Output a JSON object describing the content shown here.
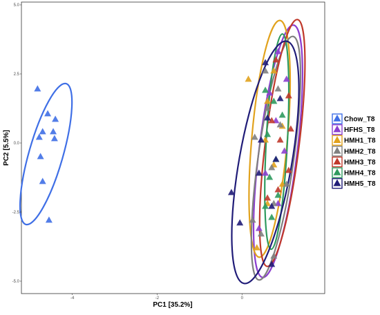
{
  "chart_data": {
    "type": "scatter",
    "xlabel": "PC1  [35.2%]",
    "ylabel": "PC2  [5.5%]",
    "xlim": [
      -5.2,
      1.95
    ],
    "ylim": [
      -5.45,
      5.1
    ],
    "x_ticks": [
      -4,
      -2,
      0
    ],
    "y_ticks": [
      -5.0,
      -2.5,
      0.0,
      2.5,
      5.0
    ],
    "y_tick_labels": [
      "-5.0",
      "-2.5",
      "0.0",
      "2.5",
      "5.0"
    ],
    "x_tick_labels": [
      "-4",
      "-2",
      "0"
    ],
    "grid": false,
    "marker": "triangle",
    "legend_position": "right",
    "series": [
      {
        "name": "Chow_T8",
        "color": "#3f6fe6",
        "points": [
          [
            -4.82,
            1.95
          ],
          [
            -4.58,
            1.05
          ],
          [
            -4.4,
            0.85
          ],
          [
            -4.7,
            0.4
          ],
          [
            -4.45,
            0.4
          ],
          [
            -4.78,
            0.2
          ],
          [
            -4.42,
            0.15
          ],
          [
            -4.75,
            -0.5
          ],
          [
            -4.7,
            -1.4
          ],
          [
            -4.55,
            -2.8
          ]
        ],
        "ellipse": {
          "center": [
            -4.62,
            -0.4
          ],
          "axis_x": 0.4,
          "axis_y": 2.65,
          "rotation_deg": 16
        }
      },
      {
        "name": "HFHS_T8",
        "color": "#8b3fcf",
        "points": [
          [
            0.85,
            3.3
          ],
          [
            1.05,
            2.3
          ],
          [
            0.65,
            1.8
          ],
          [
            0.8,
            0.8
          ],
          [
            1.0,
            -0.3
          ],
          [
            0.55,
            -1.1
          ],
          [
            0.85,
            -2.2
          ],
          [
            0.4,
            -3.1
          ]
        ],
        "ellipse": {
          "center": [
            0.85,
            -0.3
          ],
          "axis_x": 0.45,
          "axis_y": 4.6,
          "rotation_deg": 7
        }
      },
      {
        "name": "HMH1_T8",
        "color": "#e1a21d",
        "points": [
          [
            0.15,
            2.3
          ],
          [
            0.75,
            2.6
          ],
          [
            0.6,
            1.5
          ],
          [
            0.95,
            0.6
          ],
          [
            0.55,
            0.1
          ],
          [
            0.75,
            -0.8
          ],
          [
            0.95,
            -1.5
          ],
          [
            0.6,
            -2.2
          ],
          [
            0.35,
            -3.8
          ]
        ],
        "ellipse": {
          "center": [
            0.65,
            0.15
          ],
          "axis_x": 0.42,
          "axis_y": 4.3,
          "rotation_deg": 5
        }
      },
      {
        "name": "HMH2_T8",
        "color": "#808080",
        "points": [
          [
            0.55,
            2.6
          ],
          [
            0.85,
            1.95
          ],
          [
            0.6,
            1.25
          ],
          [
            0.9,
            0.65
          ],
          [
            0.3,
            0.2
          ],
          [
            0.7,
            -0.9
          ],
          [
            1.05,
            -1.5
          ],
          [
            0.75,
            -2.2
          ],
          [
            0.25,
            -2.8
          ],
          [
            0.45,
            -3.3
          ],
          [
            0.75,
            -4.1
          ]
        ],
        "ellipse": {
          "center": [
            0.8,
            -0.55
          ],
          "axis_x": 0.42,
          "axis_y": 4.45,
          "rotation_deg": 8
        }
      },
      {
        "name": "HMH3_T8",
        "color": "#c0392b",
        "points": [
          [
            0.8,
            3.0
          ],
          [
            1.1,
            1.7
          ],
          [
            0.7,
            0.8
          ],
          [
            1.15,
            0.5
          ],
          [
            0.9,
            0.1
          ],
          [
            1.1,
            -1.0
          ],
          [
            0.85,
            -1.7
          ],
          [
            0.6,
            -2.0
          ]
        ],
        "ellipse": {
          "center": [
            0.95,
            0.0
          ],
          "axis_x": 0.4,
          "axis_y": 4.5,
          "rotation_deg": 7
        }
      },
      {
        "name": "HMH4_T8",
        "color": "#2e9a5e",
        "points": [
          [
            0.55,
            1.9
          ],
          [
            0.75,
            1.5
          ],
          [
            0.95,
            1.0
          ],
          [
            0.6,
            0.3
          ],
          [
            0.8,
            -0.6
          ],
          [
            0.65,
            -1.25
          ],
          [
            0.85,
            -1.9
          ],
          [
            0.55,
            -2.3
          ],
          [
            0.7,
            -2.7
          ]
        ],
        "ellipse": {
          "center": [
            0.82,
            0.05
          ],
          "axis_x": 0.25,
          "axis_y": 3.9,
          "rotation_deg": 3
        }
      },
      {
        "name": "HMH5_T8",
        "color": "#201c78",
        "points": [
          [
            -0.25,
            -1.8
          ],
          [
            0.55,
            2.9
          ],
          [
            0.9,
            1.6
          ],
          [
            0.6,
            0.9
          ],
          [
            0.45,
            0.1
          ],
          [
            0.8,
            -0.6
          ],
          [
            0.4,
            -1.1
          ],
          [
            0.7,
            -2.3
          ],
          [
            -0.05,
            -2.9
          ],
          [
            0.7,
            -4.4
          ]
        ],
        "ellipse": {
          "center": [
            0.55,
            -0.7
          ],
          "axis_x": 0.62,
          "axis_y": 4.45,
          "rotation_deg": 10
        }
      }
    ]
  }
}
